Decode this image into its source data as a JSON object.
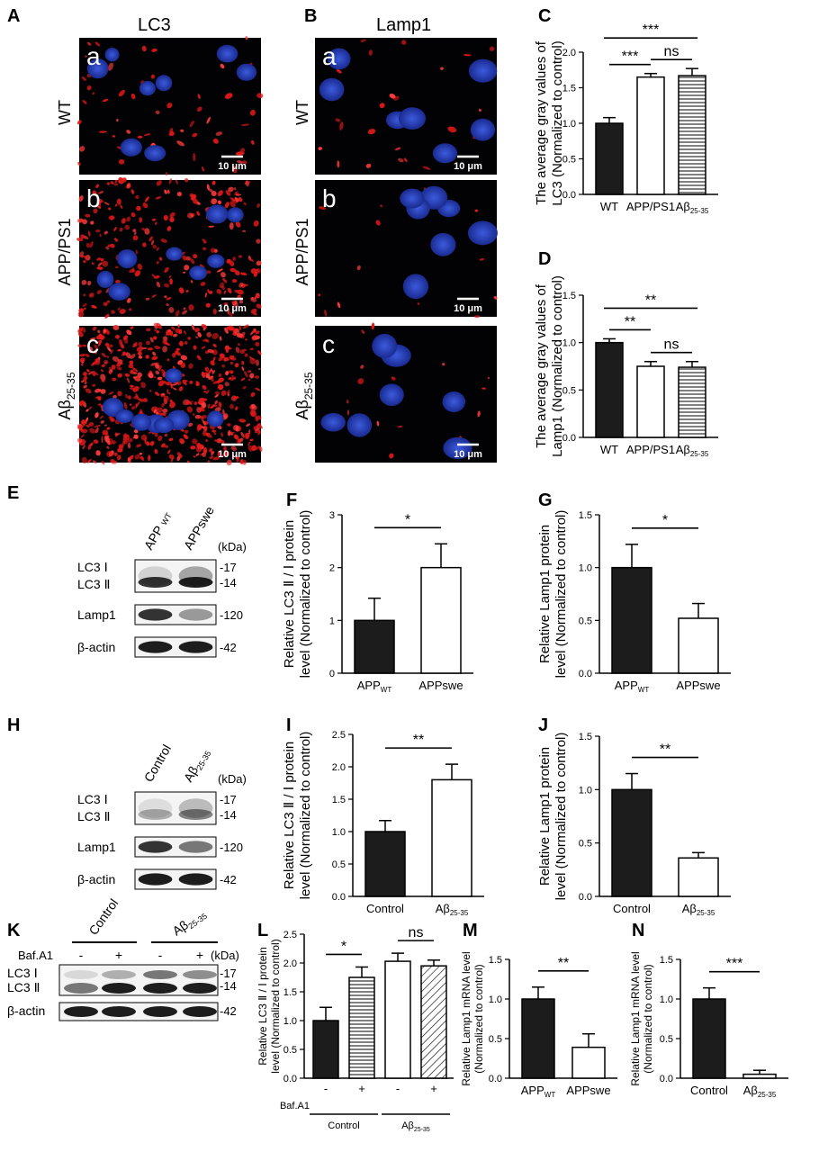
{
  "panels": {
    "A": {
      "letter": "A",
      "title": "LC3"
    },
    "B": {
      "letter": "B",
      "title": "Lamp1"
    },
    "rows": [
      {
        "label": "WT",
        "sub": "a"
      },
      {
        "label": "APP/PS1",
        "sub": "b"
      },
      {
        "label": "Aβ25-35",
        "label_main": "Aβ",
        "label_sub": "25-35",
        "sub": "c"
      }
    ],
    "scale_bar": "10 μm"
  },
  "blots": {
    "E": {
      "letter": "E",
      "lanes": [
        "APP",
        "APPswe"
      ],
      "lane1_sub": "WT",
      "kda": "(kDa)",
      "bands": [
        "LC3 Ⅰ",
        "LC3 Ⅱ",
        "Lamp1",
        "β-actin"
      ],
      "markers": [
        "17",
        "14",
        "120",
        "42"
      ]
    },
    "H": {
      "letter": "H",
      "lanes": [
        "Control",
        "Aβ"
      ],
      "lane2_sub": "25-35",
      "kda": "(kDa)",
      "bands": [
        "LC3 Ⅰ",
        "LC3 Ⅱ",
        "Lamp1",
        "β-actin"
      ],
      "markers": [
        "17",
        "14",
        "120",
        "42"
      ]
    },
    "K": {
      "letter": "K",
      "groups": [
        "Control",
        "Aβ"
      ],
      "group2_sub": "25-35",
      "treatment": "Baf.A1",
      "signs": [
        "-",
        "+",
        "-",
        "+"
      ],
      "kda": "(kDa)",
      "bands": [
        "LC3 Ⅰ",
        "LC3 Ⅱ",
        "β-actin"
      ],
      "markers": [
        "17",
        "14",
        "42"
      ]
    }
  },
  "chart_data": [
    {
      "id": "C",
      "letter": "C",
      "type": "bar",
      "categories": [
        "WT",
        "APP/PS1",
        "Aβ"
      ],
      "cat_subs": [
        "",
        "",
        "25-35"
      ],
      "values": [
        1.0,
        1.65,
        1.67
      ],
      "errors": [
        0.08,
        0.05,
        0.1
      ],
      "ylim": [
        0,
        2.0
      ],
      "yticks": [
        "0.0",
        "0.5",
        "1.0",
        "1.5",
        "2.0"
      ],
      "ylabel": [
        "The average gray values of",
        "LC3 (Normalized to control)"
      ],
      "fills": [
        "solid",
        "white",
        "hlines"
      ],
      "sig": [
        {
          "text": "***",
          "from": 0,
          "to": 1
        },
        {
          "text": "ns",
          "from": 1,
          "to": 2
        },
        {
          "text": "***",
          "from": 0,
          "to": 2
        }
      ]
    },
    {
      "id": "D",
      "letter": "D",
      "type": "bar",
      "categories": [
        "WT",
        "APP/PS1",
        "Aβ"
      ],
      "cat_subs": [
        "",
        "",
        "25-35"
      ],
      "values": [
        1.0,
        0.75,
        0.74
      ],
      "errors": [
        0.04,
        0.05,
        0.06
      ],
      "ylim": [
        0,
        1.5
      ],
      "yticks": [
        "0.0",
        "0.5",
        "1.0",
        "1.5"
      ],
      "ylabel": [
        "The average gray values of",
        "Lamp1 (Normalized to control)"
      ],
      "fills": [
        "solid",
        "white",
        "hlines"
      ],
      "sig": [
        {
          "text": "**",
          "from": 0,
          "to": 1
        },
        {
          "text": "ns",
          "from": 1,
          "to": 2
        },
        {
          "text": "**",
          "from": 0,
          "to": 2
        }
      ]
    },
    {
      "id": "F",
      "letter": "F",
      "type": "bar",
      "categories": [
        "APP",
        "APPswe"
      ],
      "cat_subs": [
        "WT",
        ""
      ],
      "values": [
        1.0,
        2.0
      ],
      "errors": [
        0.42,
        0.45
      ],
      "ylim": [
        0,
        3
      ],
      "yticks": [
        "0",
        "1",
        "2",
        "3"
      ],
      "ylabel": [
        "Relative LC3 Ⅱ / Ⅰ protein",
        "level (Normalized to control)"
      ],
      "fills": [
        "solid",
        "white"
      ],
      "sig": [
        {
          "text": "*",
          "from": 0,
          "to": 1
        }
      ]
    },
    {
      "id": "G",
      "letter": "G",
      "type": "bar",
      "categories": [
        "APP",
        "APPswe"
      ],
      "cat_subs": [
        "WT",
        ""
      ],
      "values": [
        1.0,
        0.52
      ],
      "errors": [
        0.22,
        0.14
      ],
      "ylim": [
        0,
        1.5
      ],
      "yticks": [
        "0.0",
        "0.5",
        "1.0",
        "1.5"
      ],
      "ylabel": [
        "Relative Lamp1 protein",
        "level (Normalized to control)"
      ],
      "fills": [
        "solid",
        "white"
      ],
      "sig": [
        {
          "text": "*",
          "from": 0,
          "to": 1
        }
      ]
    },
    {
      "id": "I",
      "letter": "I",
      "type": "bar",
      "categories": [
        "Control",
        "Aβ"
      ],
      "cat_subs": [
        "",
        "25-35"
      ],
      "values": [
        1.0,
        1.8
      ],
      "errors": [
        0.17,
        0.24
      ],
      "ylim": [
        0,
        2.5
      ],
      "yticks": [
        "0.0",
        "0.5",
        "1.0",
        "1.5",
        "2.0",
        "2.5"
      ],
      "ylabel": [
        "Relative LC3 Ⅱ / Ⅰ protein",
        "level (Normalized to control)"
      ],
      "fills": [
        "solid",
        "white"
      ],
      "sig": [
        {
          "text": "**",
          "from": 0,
          "to": 1
        }
      ]
    },
    {
      "id": "J",
      "letter": "J",
      "type": "bar",
      "categories": [
        "Control",
        "Aβ"
      ],
      "cat_subs": [
        "",
        "25-35"
      ],
      "values": [
        1.0,
        0.36
      ],
      "errors": [
        0.15,
        0.05
      ],
      "ylim": [
        0,
        1.5
      ],
      "yticks": [
        "0.0",
        "0.5",
        "1.0",
        "1.5"
      ],
      "ylabel": [
        "Relative Lamp1 protein",
        "level (Normalized to control)"
      ],
      "fills": [
        "solid",
        "white"
      ],
      "sig": [
        {
          "text": "**",
          "from": 0,
          "to": 1
        }
      ]
    },
    {
      "id": "L",
      "letter": "L",
      "type": "bar",
      "categories": [
        "-",
        "+",
        "-",
        "+"
      ],
      "cat_subs": [
        "",
        "",
        "",
        ""
      ],
      "values": [
        1.0,
        1.75,
        2.03,
        1.95
      ],
      "errors": [
        0.23,
        0.18,
        0.14,
        0.1
      ],
      "ylim": [
        0,
        2.5
      ],
      "yticks": [
        "0.0",
        "0.5",
        "1.0",
        "1.5",
        "2.0",
        "2.5"
      ],
      "ylabel": [
        "Relative LC3 Ⅱ / Ⅰ protein",
        "level (Normalized to control)"
      ],
      "fills": [
        "solid",
        "hlines",
        "white",
        "diag"
      ],
      "sig": [
        {
          "text": "*",
          "from": 0,
          "to": 1
        },
        {
          "text": "ns",
          "from": 2,
          "to": 3
        }
      ],
      "treatment": "Baf.A1",
      "groups": [
        "Control",
        "Aβ"
      ],
      "group_subs": [
        "",
        "25-35"
      ]
    },
    {
      "id": "M",
      "letter": "M",
      "type": "bar",
      "categories": [
        "APP",
        "APPswe"
      ],
      "cat_subs": [
        "WT",
        ""
      ],
      "values": [
        1.0,
        0.39
      ],
      "errors": [
        0.15,
        0.17
      ],
      "ylim": [
        0,
        1.5
      ],
      "yticks": [
        "0.0",
        "0.5",
        "1.0",
        "1.5"
      ],
      "ylabel": [
        "Relative Lamp1 mRNA level",
        "(Normalized to control)"
      ],
      "fills": [
        "solid",
        "white"
      ],
      "sig": [
        {
          "text": "**",
          "from": 0,
          "to": 1
        }
      ]
    },
    {
      "id": "N",
      "letter": "N",
      "type": "bar",
      "categories": [
        "Control",
        "Aβ"
      ],
      "cat_subs": [
        "",
        "25-35"
      ],
      "values": [
        1.0,
        0.05
      ],
      "errors": [
        0.14,
        0.05
      ],
      "ylim": [
        0,
        1.5
      ],
      "yticks": [
        "0.0",
        "0.5",
        "1.0",
        "1.5"
      ],
      "ylabel": [
        "Relative Lamp1 mRNA level",
        "(Normalized to control)"
      ],
      "fills": [
        "solid",
        "white"
      ],
      "sig": [
        {
          "text": "***",
          "from": 0,
          "to": 1
        }
      ]
    }
  ]
}
